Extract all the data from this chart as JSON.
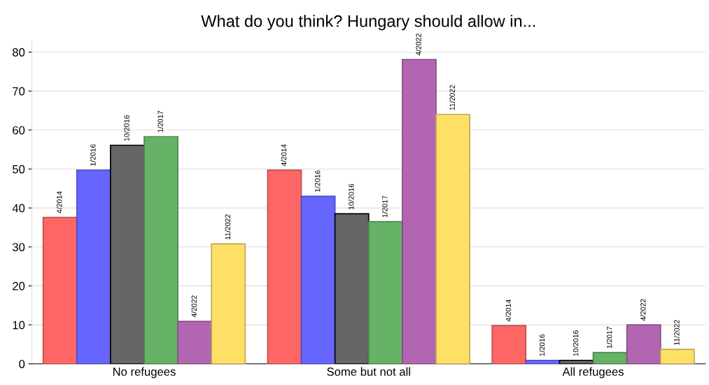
{
  "chart_data": {
    "type": "bar",
    "title": "What do you think? Hungary should allow in...",
    "categories": [
      "No refugees",
      "Some but not all",
      "All refugees"
    ],
    "series": [
      {
        "name": "4/2014",
        "color": "#ff6666",
        "values": [
          37.6,
          49.7,
          9.8
        ]
      },
      {
        "name": "1/2016",
        "color": "#6666ff",
        "values": [
          49.7,
          43.0,
          0.9
        ]
      },
      {
        "name": "10/2016",
        "color": "#666666",
        "values": [
          56.1,
          38.5,
          0.9
        ]
      },
      {
        "name": "1/2017",
        "color": "#66b266",
        "values": [
          58.3,
          36.5,
          2.9
        ]
      },
      {
        "name": "4/2022",
        "color": "#b266b2",
        "values": [
          10.9,
          78.1,
          10.0
        ]
      },
      {
        "name": "11/2022",
        "color": "#ffe066",
        "values": [
          30.8,
          64.0,
          3.7
        ]
      }
    ],
    "ylim": [
      0,
      83
    ],
    "yticks": [
      0,
      10,
      20,
      30,
      40,
      50,
      60,
      70,
      80
    ],
    "grid": "y",
    "legend": false
  }
}
